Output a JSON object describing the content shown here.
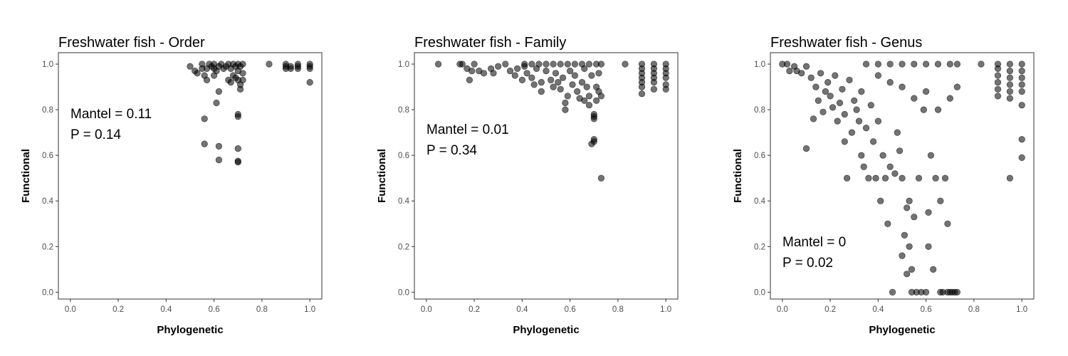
{
  "chart_data": [
    {
      "type": "scatter",
      "title": "Freshwater fish - Order",
      "xlabel": "Phylogenetic",
      "ylabel": "Functional",
      "xlim": [
        -0.05,
        1.05
      ],
      "ylim": [
        -0.03,
        1.05
      ],
      "xticks": [
        "0.0",
        "0.2",
        "0.4",
        "0.6",
        "0.8",
        "1.0"
      ],
      "yticks": [
        "0.0",
        "0.2",
        "0.4",
        "0.6",
        "0.8",
        "1.0"
      ],
      "grid": false,
      "annotations": [
        "Mantel = 0.11",
        "P = 0.14"
      ],
      "point_color": "#000000",
      "point_alpha": 0.55,
      "points": [
        [
          0.5,
          0.99
        ],
        [
          0.52,
          0.97
        ],
        [
          0.53,
          0.96
        ],
        [
          0.55,
          0.98
        ],
        [
          0.55,
          1.0
        ],
        [
          0.56,
          0.95
        ],
        [
          0.57,
          0.98
        ],
        [
          0.58,
          1.0
        ],
        [
          0.59,
          0.99
        ],
        [
          0.6,
          0.98
        ],
        [
          0.6,
          1.0
        ],
        [
          0.61,
          0.97
        ],
        [
          0.62,
          0.99
        ],
        [
          0.63,
          1.0
        ],
        [
          0.64,
          0.98
        ],
        [
          0.65,
          0.99
        ],
        [
          0.66,
          1.0
        ],
        [
          0.67,
          0.98
        ],
        [
          0.68,
          1.0
        ],
        [
          0.69,
          0.99
        ],
        [
          0.7,
          1.0
        ],
        [
          0.71,
          0.99
        ],
        [
          0.72,
          1.0
        ],
        [
          0.57,
          0.93
        ],
        [
          0.6,
          0.95
        ],
        [
          0.62,
          0.88
        ],
        [
          0.66,
          0.93
        ],
        [
          0.67,
          0.92
        ],
        [
          0.68,
          0.95
        ],
        [
          0.69,
          0.94
        ],
        [
          0.7,
          0.93
        ],
        [
          0.71,
          0.91
        ],
        [
          0.71,
          0.89
        ],
        [
          0.72,
          0.93
        ],
        [
          0.72,
          0.96
        ],
        [
          0.7,
          0.97
        ],
        [
          0.61,
          0.83
        ],
        [
          0.56,
          0.76
        ],
        [
          0.7,
          0.78
        ],
        [
          0.7,
          0.77
        ],
        [
          0.56,
          0.65
        ],
        [
          0.62,
          0.64
        ],
        [
          0.7,
          0.63
        ],
        [
          0.62,
          0.58
        ],
        [
          0.7,
          0.57
        ],
        [
          0.7,
          0.575
        ],
        [
          0.83,
          1.0
        ],
        [
          0.9,
          0.99
        ],
        [
          0.9,
          0.98
        ],
        [
          0.9,
          1.0
        ],
        [
          0.92,
          0.99
        ],
        [
          0.92,
          0.98
        ],
        [
          0.95,
          0.99
        ],
        [
          0.95,
          0.98
        ],
        [
          0.95,
          1.0
        ],
        [
          1.0,
          0.99
        ],
        [
          1.0,
          0.98
        ],
        [
          1.0,
          1.0
        ],
        [
          1.0,
          0.92
        ]
      ]
    },
    {
      "type": "scatter",
      "title": "Freshwater fish - Family",
      "xlabel": "Phylogenetic",
      "ylabel": "Functional",
      "xlim": [
        -0.05,
        1.05
      ],
      "ylim": [
        -0.03,
        1.05
      ],
      "xticks": [
        "0.0",
        "0.2",
        "0.4",
        "0.6",
        "0.8",
        "1.0"
      ],
      "yticks": [
        "0.0",
        "0.2",
        "0.4",
        "0.6",
        "0.8",
        "1.0"
      ],
      "grid": false,
      "annotations": [
        "Mantel = 0.01",
        "P = 0.34"
      ],
      "point_color": "#000000",
      "point_alpha": 0.55,
      "points": [
        [
          0.05,
          1.0
        ],
        [
          0.14,
          1.0
        ],
        [
          0.15,
          1.0
        ],
        [
          0.17,
          0.98
        ],
        [
          0.18,
          0.93
        ],
        [
          0.19,
          0.97
        ],
        [
          0.2,
          1.0
        ],
        [
          0.22,
          0.97
        ],
        [
          0.24,
          0.96
        ],
        [
          0.27,
          0.98
        ],
        [
          0.28,
          0.96
        ],
        [
          0.3,
          0.99
        ],
        [
          0.33,
          1.0
        ],
        [
          0.35,
          0.97
        ],
        [
          0.37,
          0.95
        ],
        [
          0.38,
          0.98
        ],
        [
          0.4,
          0.93
        ],
        [
          0.41,
          0.99
        ],
        [
          0.42,
          0.96
        ],
        [
          0.44,
          0.94
        ],
        [
          0.45,
          0.91
        ],
        [
          0.46,
          0.98
        ],
        [
          0.48,
          0.92
        ],
        [
          0.48,
          0.88
        ],
        [
          0.5,
          0.97
        ],
        [
          0.52,
          0.93
        ],
        [
          0.53,
          0.9
        ],
        [
          0.54,
          0.96
        ],
        [
          0.55,
          0.92
        ],
        [
          0.56,
          0.89
        ],
        [
          0.57,
          0.94
        ],
        [
          0.58,
          0.83
        ],
        [
          0.58,
          0.8
        ],
        [
          0.59,
          0.86
        ],
        [
          0.6,
          0.97
        ],
        [
          0.61,
          0.91
        ],
        [
          0.62,
          0.95
        ],
        [
          0.63,
          0.88
        ],
        [
          0.64,
          0.85
        ],
        [
          0.65,
          0.92
        ],
        [
          0.66,
          0.98
        ],
        [
          0.66,
          0.84
        ],
        [
          0.67,
          0.9
        ],
        [
          0.68,
          0.86
        ],
        [
          0.68,
          0.82
        ],
        [
          0.69,
          0.95
        ],
        [
          0.7,
          0.78
        ],
        [
          0.7,
          0.77
        ],
        [
          0.7,
          0.67
        ],
        [
          0.7,
          0.66
        ],
        [
          0.69,
          0.65
        ],
        [
          0.71,
          0.84
        ],
        [
          0.71,
          0.9
        ],
        [
          0.72,
          0.96
        ],
        [
          0.72,
          0.88
        ],
        [
          0.73,
          0.86
        ],
        [
          0.73,
          0.5
        ],
        [
          0.7,
          0.76
        ],
        [
          0.41,
          1.0
        ],
        [
          0.44,
          1.0
        ],
        [
          0.47,
          1.0
        ],
        [
          0.5,
          1.0
        ],
        [
          0.53,
          1.0
        ],
        [
          0.56,
          1.0
        ],
        [
          0.59,
          1.0
        ],
        [
          0.62,
          1.0
        ],
        [
          0.65,
          1.0
        ],
        [
          0.68,
          1.0
        ],
        [
          0.71,
          1.0
        ],
        [
          0.73,
          1.0
        ],
        [
          0.83,
          1.0
        ],
        [
          0.9,
          1.0
        ],
        [
          0.9,
          0.98
        ],
        [
          0.9,
          0.96
        ],
        [
          0.9,
          0.94
        ],
        [
          0.9,
          0.92
        ],
        [
          0.9,
          0.9
        ],
        [
          0.9,
          0.87
        ],
        [
          0.95,
          1.0
        ],
        [
          0.95,
          0.98
        ],
        [
          0.95,
          0.96
        ],
        [
          0.95,
          0.94
        ],
        [
          0.95,
          0.92
        ],
        [
          0.95,
          0.89
        ],
        [
          1.0,
          1.0
        ],
        [
          1.0,
          0.98
        ],
        [
          1.0,
          0.96
        ],
        [
          1.0,
          0.94
        ],
        [
          1.0,
          0.91
        ],
        [
          1.0,
          0.89
        ]
      ]
    },
    {
      "type": "scatter",
      "title": "Freshwater fish - Genus",
      "xlabel": "Phylogenetic",
      "ylabel": "Functional",
      "xlim": [
        -0.05,
        1.05
      ],
      "ylim": [
        -0.03,
        1.05
      ],
      "xticks": [
        "0.0",
        "0.2",
        "0.4",
        "0.6",
        "0.8",
        "1.0"
      ],
      "yticks": [
        "0.0",
        "0.2",
        "0.4",
        "0.6",
        "0.8",
        "1.0"
      ],
      "grid": false,
      "annotations": [
        "Mantel = 0",
        "P = 0.02"
      ],
      "point_color": "#000000",
      "point_alpha": 0.55,
      "points": [
        [
          0.0,
          1.0
        ],
        [
          0.02,
          1.0
        ],
        [
          0.03,
          0.97
        ],
        [
          0.05,
          0.99
        ],
        [
          0.06,
          0.97
        ],
        [
          0.08,
          0.96
        ],
        [
          0.1,
          0.99
        ],
        [
          0.1,
          0.63
        ],
        [
          0.12,
          0.94
        ],
        [
          0.13,
          0.76
        ],
        [
          0.14,
          0.9
        ],
        [
          0.15,
          0.84
        ],
        [
          0.16,
          0.96
        ],
        [
          0.17,
          0.79
        ],
        [
          0.18,
          0.88
        ],
        [
          0.19,
          0.92
        ],
        [
          0.2,
          0.86
        ],
        [
          0.21,
          0.81
        ],
        [
          0.22,
          0.95
        ],
        [
          0.23,
          0.75
        ],
        [
          0.24,
          0.83
        ],
        [
          0.25,
          0.89
        ],
        [
          0.26,
          0.78
        ],
        [
          0.26,
          0.66
        ],
        [
          0.27,
          0.5
        ],
        [
          0.28,
          0.93
        ],
        [
          0.29,
          0.7
        ],
        [
          0.3,
          0.84
        ],
        [
          0.31,
          0.8
        ],
        [
          0.32,
          0.75
        ],
        [
          0.33,
          0.88
        ],
        [
          0.33,
          0.6
        ],
        [
          0.34,
          0.55
        ],
        [
          0.35,
          0.72
        ],
        [
          0.36,
          0.5
        ],
        [
          0.37,
          0.82
        ],
        [
          0.38,
          0.66
        ],
        [
          0.39,
          0.5
        ],
        [
          0.4,
          0.75
        ],
        [
          0.41,
          0.4
        ],
        [
          0.42,
          0.6
        ],
        [
          0.43,
          0.5
        ],
        [
          0.44,
          0.3
        ],
        [
          0.45,
          0.55
        ],
        [
          0.46,
          0.0
        ],
        [
          0.47,
          0.52
        ],
        [
          0.48,
          0.7
        ],
        [
          0.49,
          0.62
        ],
        [
          0.5,
          0.5
        ],
        [
          0.5,
          0.16
        ],
        [
          0.51,
          0.25
        ],
        [
          0.52,
          0.08
        ],
        [
          0.52,
          0.37
        ],
        [
          0.53,
          0.4
        ],
        [
          0.53,
          0.2
        ],
        [
          0.54,
          0.1
        ],
        [
          0.54,
          0.0
        ],
        [
          0.55,
          0.33
        ],
        [
          0.56,
          0.0
        ],
        [
          0.57,
          0.5
        ],
        [
          0.58,
          0.0
        ],
        [
          0.59,
          0.8
        ],
        [
          0.6,
          0.0
        ],
        [
          0.61,
          0.2
        ],
        [
          0.61,
          0.35
        ],
        [
          0.62,
          0.6
        ],
        [
          0.63,
          0.1
        ],
        [
          0.64,
          0.5
        ],
        [
          0.66,
          0.4
        ],
        [
          0.66,
          0.0
        ],
        [
          0.67,
          0.0
        ],
        [
          0.68,
          0.5
        ],
        [
          0.69,
          0.0
        ],
        [
          0.69,
          0.3
        ],
        [
          0.7,
          0.0
        ],
        [
          0.71,
          0.0
        ],
        [
          0.72,
          0.0
        ],
        [
          0.73,
          0.0
        ],
        [
          0.35,
          1.0
        ],
        [
          0.4,
          1.0
        ],
        [
          0.45,
          1.0
        ],
        [
          0.5,
          1.0
        ],
        [
          0.55,
          1.0
        ],
        [
          0.6,
          1.0
        ],
        [
          0.65,
          1.0
        ],
        [
          0.7,
          1.0
        ],
        [
          0.73,
          1.0
        ],
        [
          0.4,
          0.95
        ],
        [
          0.45,
          0.92
        ],
        [
          0.5,
          0.9
        ],
        [
          0.55,
          0.85
        ],
        [
          0.6,
          0.88
        ],
        [
          0.65,
          0.8
        ],
        [
          0.7,
          0.85
        ],
        [
          0.73,
          0.9
        ],
        [
          0.83,
          1.0
        ],
        [
          0.9,
          1.0
        ],
        [
          0.9,
          0.98
        ],
        [
          0.9,
          0.95
        ],
        [
          0.9,
          0.92
        ],
        [
          0.9,
          0.89
        ],
        [
          0.9,
          0.86
        ],
        [
          0.95,
          1.0
        ],
        [
          0.95,
          0.97
        ],
        [
          0.95,
          0.94
        ],
        [
          0.95,
          0.91
        ],
        [
          0.95,
          0.88
        ],
        [
          0.95,
          0.85
        ],
        [
          0.95,
          0.5
        ],
        [
          1.0,
          1.0
        ],
        [
          1.0,
          0.97
        ],
        [
          1.0,
          0.94
        ],
        [
          1.0,
          0.91
        ],
        [
          1.0,
          0.88
        ],
        [
          1.0,
          0.82
        ],
        [
          1.0,
          0.67
        ],
        [
          1.0,
          0.59
        ]
      ]
    }
  ]
}
